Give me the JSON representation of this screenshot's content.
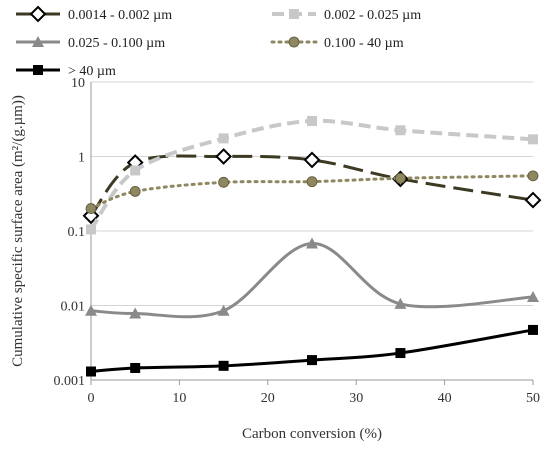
{
  "chart_data": {
    "type": "line",
    "xlabel": "Carbon conversion (%)",
    "ylabel": "Cumulative specific surface area (m²/(g.µm))",
    "xlim": [
      0,
      50
    ],
    "ylim": [
      0.001,
      10
    ],
    "yscale": "log",
    "grid": "horizontal",
    "legend_position": "top",
    "x_ticks": [
      "0",
      "10",
      "20",
      "30",
      "40",
      "50"
    ],
    "y_ticks": [
      "0.001",
      "0.01",
      "0.1",
      "1",
      "10"
    ],
    "series": [
      {
        "name": "0.0014 - 0.002 µm",
        "x": [
          0,
          5,
          15,
          25,
          35,
          50
        ],
        "y": [
          0.16,
          0.83,
          1.0,
          0.9,
          0.5,
          0.26
        ],
        "color": "#3d3a24",
        "dash": "long-dash",
        "marker": "diamond-open"
      },
      {
        "name": "0.002 - 0.025 µm",
        "x": [
          0,
          5,
          15,
          25,
          35,
          50
        ],
        "y": [
          0.105,
          0.65,
          1.75,
          3.0,
          2.25,
          1.7
        ],
        "color": "#c8c8c8",
        "dash": "dash",
        "marker": "square"
      },
      {
        "name": "0.025 - 0.100 µm",
        "x": [
          0,
          5,
          15,
          25,
          35,
          50
        ],
        "y": [
          0.0085,
          0.0078,
          0.0085,
          0.068,
          0.0105,
          0.013
        ],
        "color": "#8a8a8a",
        "dash": "solid",
        "marker": "triangle"
      },
      {
        "name": "0.100 - 40 µm",
        "x": [
          0,
          5,
          15,
          25,
          35,
          50
        ],
        "y": [
          0.2,
          0.34,
          0.45,
          0.46,
          0.51,
          0.55
        ],
        "color": "#8f8760",
        "dash": "dot",
        "marker": "circle"
      },
      {
        "name": "> 40 µm",
        "x": [
          0,
          5,
          15,
          25,
          35,
          50
        ],
        "y": [
          0.0013,
          0.00145,
          0.00155,
          0.00185,
          0.0023,
          0.0047
        ],
        "color": "#000000",
        "dash": "solid",
        "marker": "square"
      }
    ]
  }
}
